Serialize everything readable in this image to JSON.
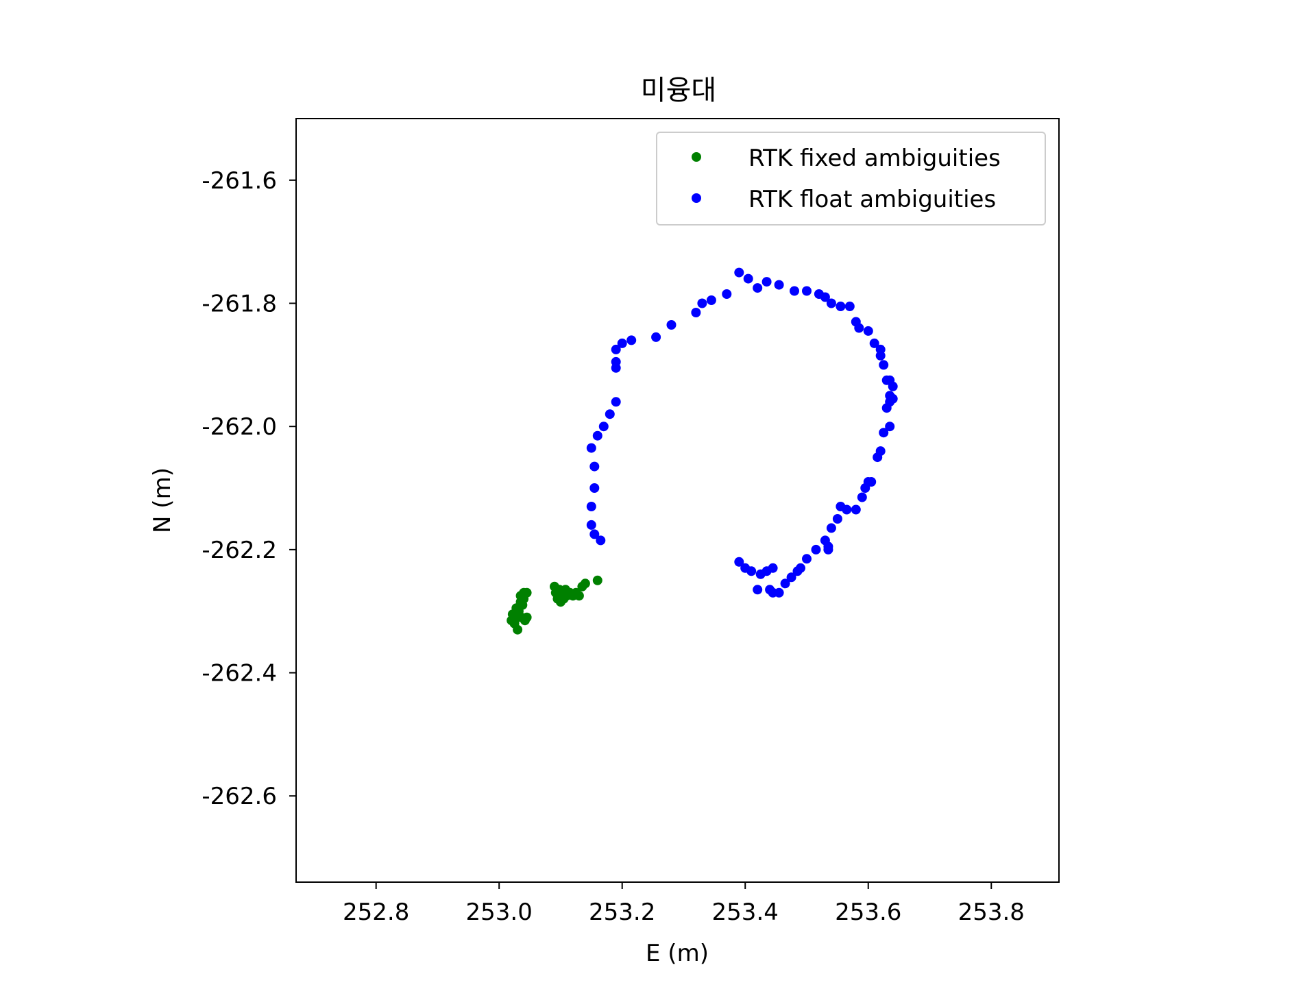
{
  "chart_data": {
    "type": "scatter",
    "title": "미융대",
    "xlabel": "E (m)",
    "ylabel": "N (m)",
    "xlim": [
      252.67,
      253.91
    ],
    "ylim": [
      -262.74,
      -261.5
    ],
    "xticks": [
      252.8,
      253.0,
      253.2,
      253.4,
      253.6,
      253.8
    ],
    "yticks": [
      -261.6,
      -261.8,
      -262.0,
      -262.2,
      -262.4,
      -262.6
    ],
    "xtick_labels": [
      "252.8",
      "253.0",
      "253.2",
      "253.4",
      "253.6",
      "253.8"
    ],
    "ytick_labels": [
      "-261.6",
      "-261.8",
      "-262.0",
      "-262.2",
      "-262.4",
      "-262.6"
    ],
    "grid": false,
    "legend_position": "top-right",
    "series": [
      {
        "name": "RTK fixed ambiguities",
        "color": "#008000",
        "x": [
          253.02,
          253.022,
          253.025,
          253.028,
          253.03,
          253.03,
          253.032,
          253.035,
          253.035,
          253.036,
          253.038,
          253.04,
          253.04,
          253.042,
          253.045,
          253.045,
          253.09,
          253.092,
          253.095,
          253.098,
          253.1,
          253.1,
          253.102,
          253.105,
          253.108,
          253.11,
          253.115,
          253.12,
          253.125,
          253.13,
          253.135,
          253.14,
          253.16
        ],
        "y": [
          -262.315,
          -262.305,
          -262.32,
          -262.295,
          -262.31,
          -262.33,
          -262.3,
          -262.285,
          -262.275,
          -262.31,
          -262.29,
          -262.28,
          -262.27,
          -262.315,
          -262.27,
          -262.31,
          -262.26,
          -262.27,
          -262.28,
          -262.265,
          -262.285,
          -262.275,
          -262.27,
          -262.28,
          -262.265,
          -262.275,
          -262.27,
          -262.275,
          -262.27,
          -262.275,
          -262.26,
          -262.255,
          -262.25
        ]
      },
      {
        "name": "RTK float ambiguities",
        "color": "#0000ff",
        "x": [
          253.39,
          253.4,
          253.41,
          253.42,
          253.425,
          253.435,
          253.44,
          253.445,
          253.445,
          253.455,
          253.465,
          253.475,
          253.485,
          253.49,
          253.5,
          253.515,
          253.53,
          253.535,
          253.535,
          253.54,
          253.55,
          253.555,
          253.565,
          253.58,
          253.59,
          253.595,
          253.6,
          253.605,
          253.615,
          253.62,
          253.625,
          253.635,
          253.63,
          253.635,
          253.64,
          253.635,
          253.64,
          253.635,
          253.63,
          253.625,
          253.62,
          253.62,
          253.61,
          253.6,
          253.585,
          253.58,
          253.57,
          253.555,
          253.54,
          253.53,
          253.52,
          253.5,
          253.48,
          253.455,
          253.435,
          253.42,
          253.405,
          253.39,
          253.37,
          253.345,
          253.33,
          253.32,
          253.28,
          253.255,
          253.215,
          253.2,
          253.19,
          253.19,
          253.19,
          253.19,
          253.18,
          253.17,
          253.16,
          253.15,
          253.155,
          253.155,
          253.15,
          253.15,
          253.155,
          253.165
        ],
        "y": [
          -262.22,
          -262.23,
          -262.235,
          -262.265,
          -262.24,
          -262.235,
          -262.265,
          -262.23,
          -262.27,
          -262.27,
          -262.255,
          -262.245,
          -262.235,
          -262.23,
          -262.215,
          -262.2,
          -262.185,
          -262.195,
          -262.2,
          -262.165,
          -262.15,
          -262.13,
          -262.135,
          -262.135,
          -262.115,
          -262.1,
          -262.09,
          -262.09,
          -262.05,
          -262.04,
          -262.01,
          -262.0,
          -261.97,
          -261.96,
          -261.955,
          -261.95,
          -261.935,
          -261.925,
          -261.925,
          -261.9,
          -261.885,
          -261.875,
          -261.865,
          -261.845,
          -261.84,
          -261.83,
          -261.805,
          -261.805,
          -261.8,
          -261.79,
          -261.785,
          -261.78,
          -261.78,
          -261.77,
          -261.765,
          -261.775,
          -261.76,
          -261.75,
          -261.785,
          -261.795,
          -261.8,
          -261.815,
          -261.835,
          -261.855,
          -261.86,
          -261.865,
          -261.875,
          -261.895,
          -261.905,
          -261.96,
          -261.98,
          -262.0,
          -262.015,
          -262.035,
          -262.065,
          -262.1,
          -262.13,
          -262.16,
          -262.175,
          -262.185
        ]
      }
    ]
  }
}
